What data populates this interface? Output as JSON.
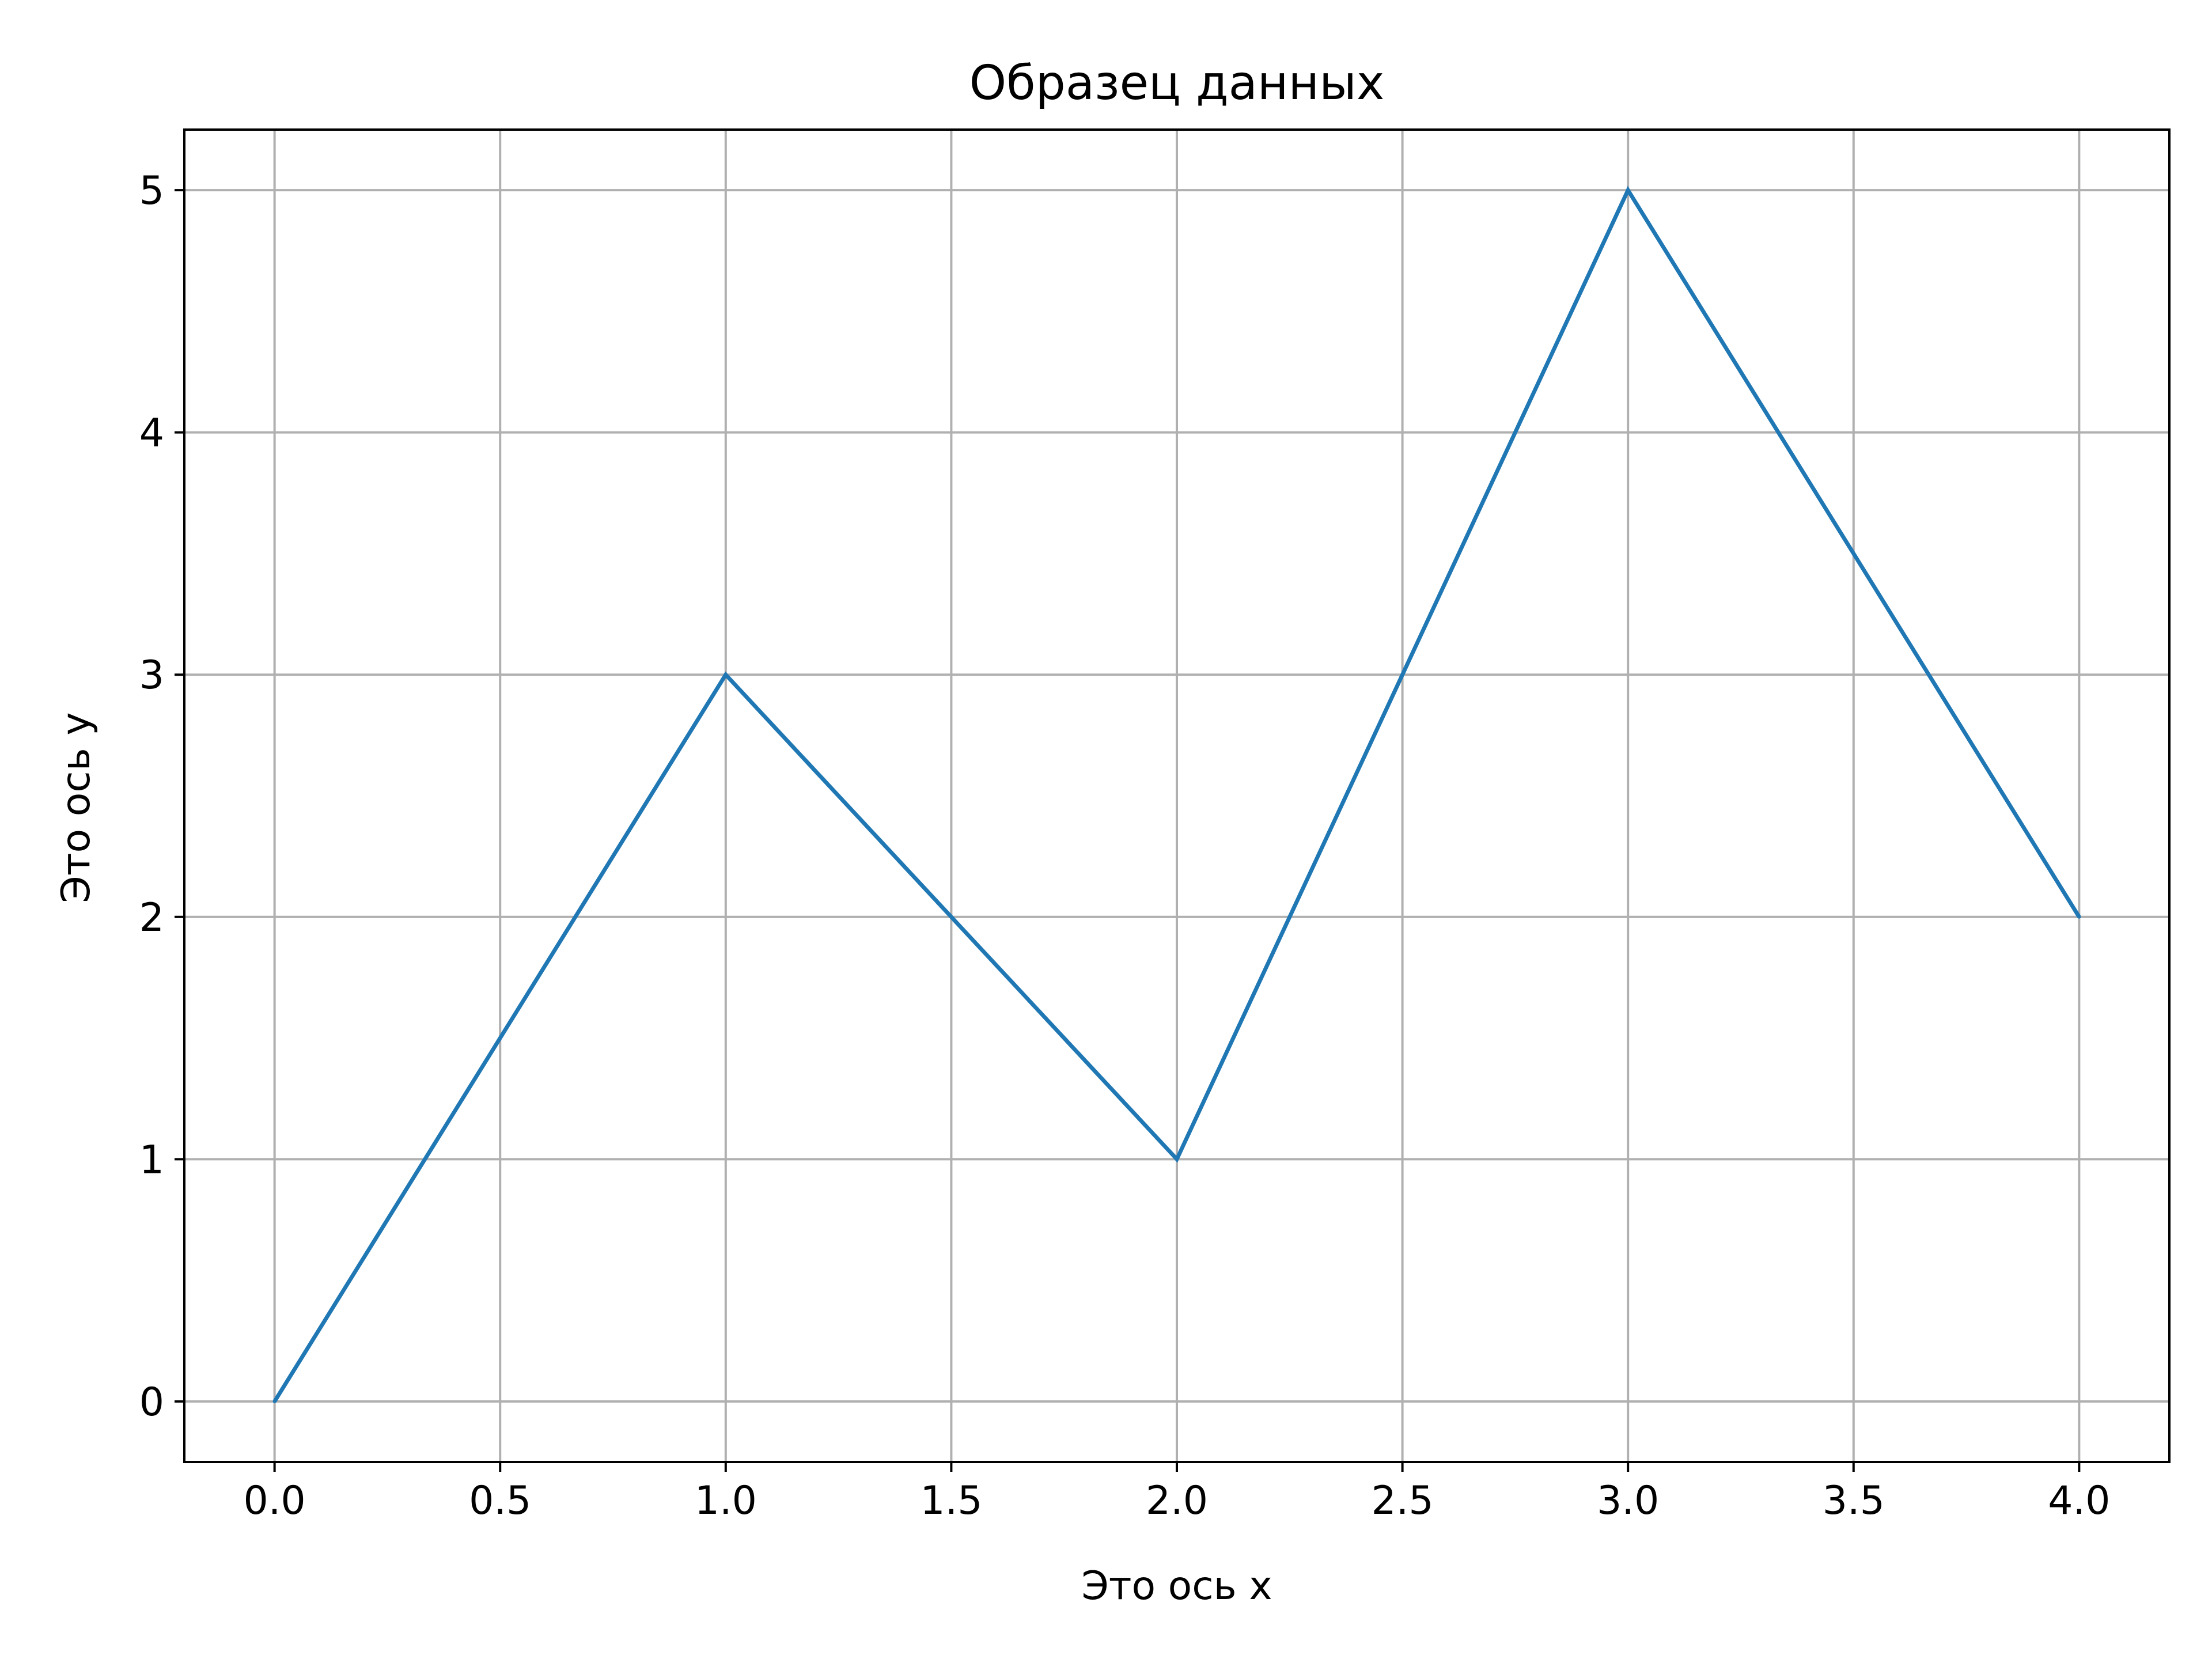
{
  "chart_data": {
    "type": "line",
    "title": "Образец данных",
    "xlabel": "Это ось x",
    "ylabel": "Это ось y",
    "x": [
      0,
      1,
      2,
      3,
      4
    ],
    "series": [
      {
        "values": [
          0,
          3,
          1,
          5,
          2
        ],
        "color": "#1f77b4"
      }
    ],
    "xlim": [
      -0.2,
      4.2
    ],
    "ylim": [
      -0.25,
      5.25
    ],
    "xticks": [
      0.0,
      0.5,
      1.0,
      1.5,
      2.0,
      2.5,
      3.0,
      3.5,
      4.0
    ],
    "xtick_labels": [
      "0.0",
      "0.5",
      "1.0",
      "1.5",
      "2.0",
      "2.5",
      "3.0",
      "3.5",
      "4.0"
    ],
    "yticks": [
      0,
      1,
      2,
      3,
      4,
      5
    ],
    "ytick_labels": [
      "0",
      "1",
      "2",
      "3",
      "4",
      "5"
    ],
    "grid": true,
    "grid_color": "#b0b0b0"
  }
}
